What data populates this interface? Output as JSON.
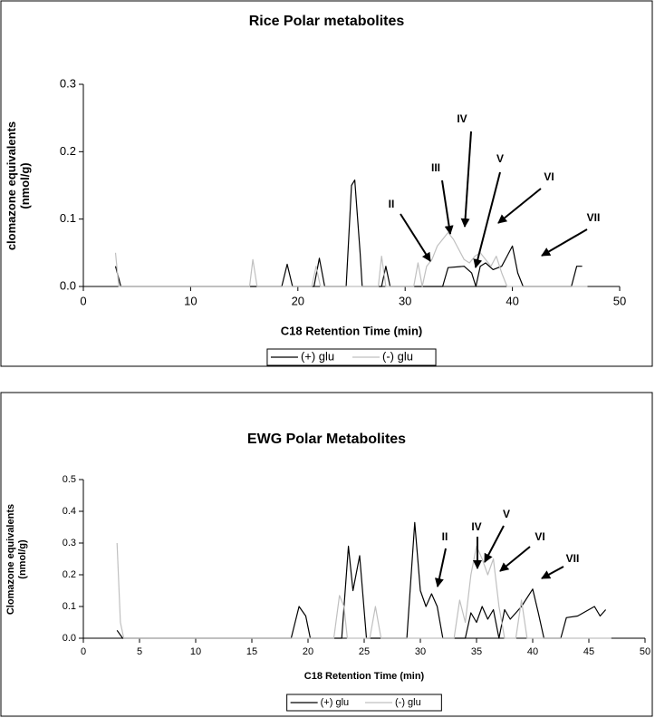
{
  "chart_data": [
    {
      "type": "line",
      "title": "Rice Polar metabolites",
      "x_label": "C18 Retention Time (min)",
      "y_label": "clomazone equivalents (nmol/g)",
      "xlim": [
        0,
        50
      ],
      "xticks": [
        0,
        10,
        20,
        30,
        40,
        50
      ],
      "ylim": [
        0,
        0.3
      ],
      "yticks": [
        {
          "value": 0,
          "label": "0.0"
        },
        0.1,
        0.2,
        0.3
      ],
      "grid": false,
      "legend": "bottom",
      "annotations": [
        "II",
        "III",
        "IV",
        "V",
        "VI",
        "VII"
      ],
      "series": [
        {
          "name": "(+) glu",
          "color": "#000000",
          "x": [
            3.0,
            3.5,
            18.5,
            19.0,
            19.5,
            21.5,
            22.0,
            22.5,
            24.5,
            25.0,
            25.3,
            25.8,
            26.0,
            27.8,
            28.2,
            28.6,
            33.5,
            34.0,
            35.5,
            36.2,
            36.6,
            37.0,
            37.5,
            38.2,
            39.0,
            39.5,
            40.0,
            40.5,
            41.0,
            45.5,
            46.0,
            46.5
          ],
          "values": [
            0.03,
            0,
            0,
            0.033,
            0,
            0,
            0.042,
            0,
            0,
            0.15,
            0.158,
            0.05,
            0,
            0,
            0.03,
            0,
            0,
            0.028,
            0.03,
            0.02,
            0,
            0.03,
            0.035,
            0.025,
            0.03,
            0.045,
            0.06,
            0.02,
            0,
            0,
            0.03,
            0.03
          ]
        },
        {
          "name": "(-) glu",
          "color": "#c0c0c0",
          "x": [
            3.0,
            3.3,
            15.5,
            15.8,
            16.2,
            21.3,
            21.7,
            22.1,
            27.5,
            27.8,
            28.2,
            30.8,
            31.2,
            31.6,
            32.0,
            32.5,
            33.0,
            33.5,
            34.0,
            34.5,
            35.0,
            35.5,
            36.0,
            36.5,
            37.0,
            37.5,
            38.0,
            38.5,
            39.0,
            39.5,
            47.0
          ],
          "values": [
            0.05,
            0,
            0,
            0.04,
            0,
            0,
            0.03,
            0,
            0,
            0.045,
            0,
            0,
            0.035,
            0,
            0.03,
            0.04,
            0.06,
            0.07,
            0.08,
            0.07,
            0.055,
            0.04,
            0.035,
            0.045,
            0.05,
            0.04,
            0.03,
            0.045,
            0.02,
            0,
            0
          ]
        }
      ]
    },
    {
      "type": "line",
      "title": "EWG Polar Metabolites",
      "x_label": "C18 Retention Time (min)",
      "y_label": "Clomazone equivalents (nmol/g)",
      "xlim": [
        0,
        50
      ],
      "xticks": [
        0,
        5,
        10,
        15,
        20,
        25,
        30,
        35,
        40,
        45,
        50
      ],
      "ylim": [
        0,
        0.5
      ],
      "yticks": [
        {
          "value": 0,
          "label": "0.0"
        },
        0.1,
        0.2,
        0.3,
        0.4,
        0.5
      ],
      "grid": false,
      "legend": "bottom",
      "annotations": [
        "II",
        "IV",
        "V",
        "VI",
        "VII"
      ],
      "series": [
        {
          "name": "(+) glu",
          "color": "#000000",
          "x": [
            3.0,
            3.5,
            18.5,
            19.2,
            19.8,
            20.2,
            23.0,
            23.6,
            24.0,
            24.6,
            25.2,
            28.8,
            29.5,
            30.0,
            30.5,
            31.0,
            31.5,
            32.0,
            34.0,
            34.5,
            35.0,
            35.5,
            36.0,
            36.5,
            37.0,
            37.5,
            38.0,
            39.0,
            40.0,
            40.5,
            41.0,
            42.5,
            43.0,
            44.0,
            45.5,
            46.0,
            46.5
          ],
          "values": [
            0.025,
            0,
            0,
            0.1,
            0.07,
            0,
            0,
            0.29,
            0.15,
            0.26,
            0,
            0,
            0.365,
            0.15,
            0.1,
            0.14,
            0.1,
            0,
            0,
            0.08,
            0.05,
            0.1,
            0.06,
            0.09,
            0,
            0.09,
            0.06,
            0.1,
            0.155,
            0.08,
            0,
            0,
            0.065,
            0.07,
            0.1,
            0.07,
            0.09
          ]
        },
        {
          "name": "(-) glu",
          "color": "#c0c0c0",
          "x": [
            3.0,
            3.3,
            3.6,
            22.3,
            22.8,
            23.2,
            23.5,
            25.5,
            26.0,
            26.5,
            33.0,
            33.5,
            34.0,
            34.5,
            35.0,
            35.5,
            36.0,
            36.5,
            37.0,
            37.5,
            38.5,
            39.0,
            39.5,
            47.0
          ],
          "values": [
            0.3,
            0.05,
            0,
            0,
            0.135,
            0.1,
            0,
            0,
            0.1,
            0,
            0,
            0.12,
            0.05,
            0.2,
            0.29,
            0.25,
            0.2,
            0.25,
            0.1,
            0,
            0,
            0.12,
            0,
            0
          ]
        }
      ]
    }
  ]
}
